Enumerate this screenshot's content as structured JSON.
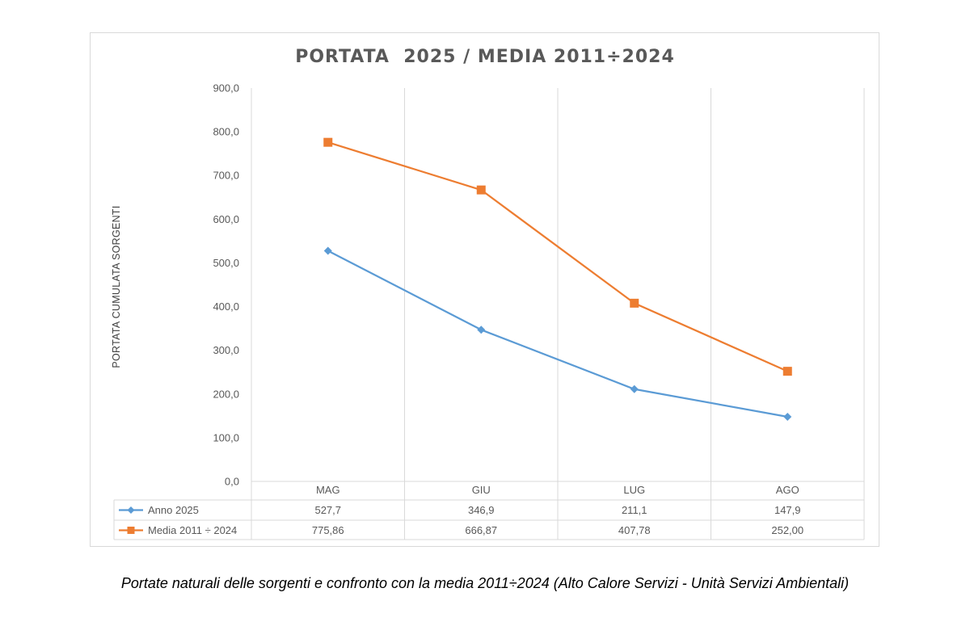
{
  "chart_data": {
    "type": "line",
    "title": "PORTATA  2025 / MEDIA 2011÷2024",
    "xlabel": "",
    "ylabel": "PORTATA CUMULATA SORGENTI",
    "categories": [
      "MAG",
      "GIU",
      "LUG",
      "AGO"
    ],
    "ylim": [
      0,
      900
    ],
    "yticks": [
      "0,0",
      "100,0",
      "200,0",
      "300,0",
      "400,0",
      "500,0",
      "600,0",
      "700,0",
      "800,0",
      "900,0"
    ],
    "grid": true,
    "legend": "data-table",
    "series": [
      {
        "name": "Anno 2025",
        "values": [
          527.7,
          346.9,
          211.1,
          147.9
        ],
        "labels": [
          "527,7",
          "346,9",
          "211,1",
          "147,9"
        ],
        "color": "#5b9bd5",
        "marker": "diamond"
      },
      {
        "name": "Media 2011 ÷ 2024",
        "values": [
          775.86,
          666.87,
          407.78,
          252.0
        ],
        "labels": [
          "775,86",
          "666,87",
          "407,78",
          "252,00"
        ],
        "color": "#ed7d31",
        "marker": "square"
      }
    ]
  },
  "caption": "Portate naturali delle sorgenti e confronto con la media 2011÷2024 (Alto Calore Servizi - Unità Servizi Ambientali)"
}
